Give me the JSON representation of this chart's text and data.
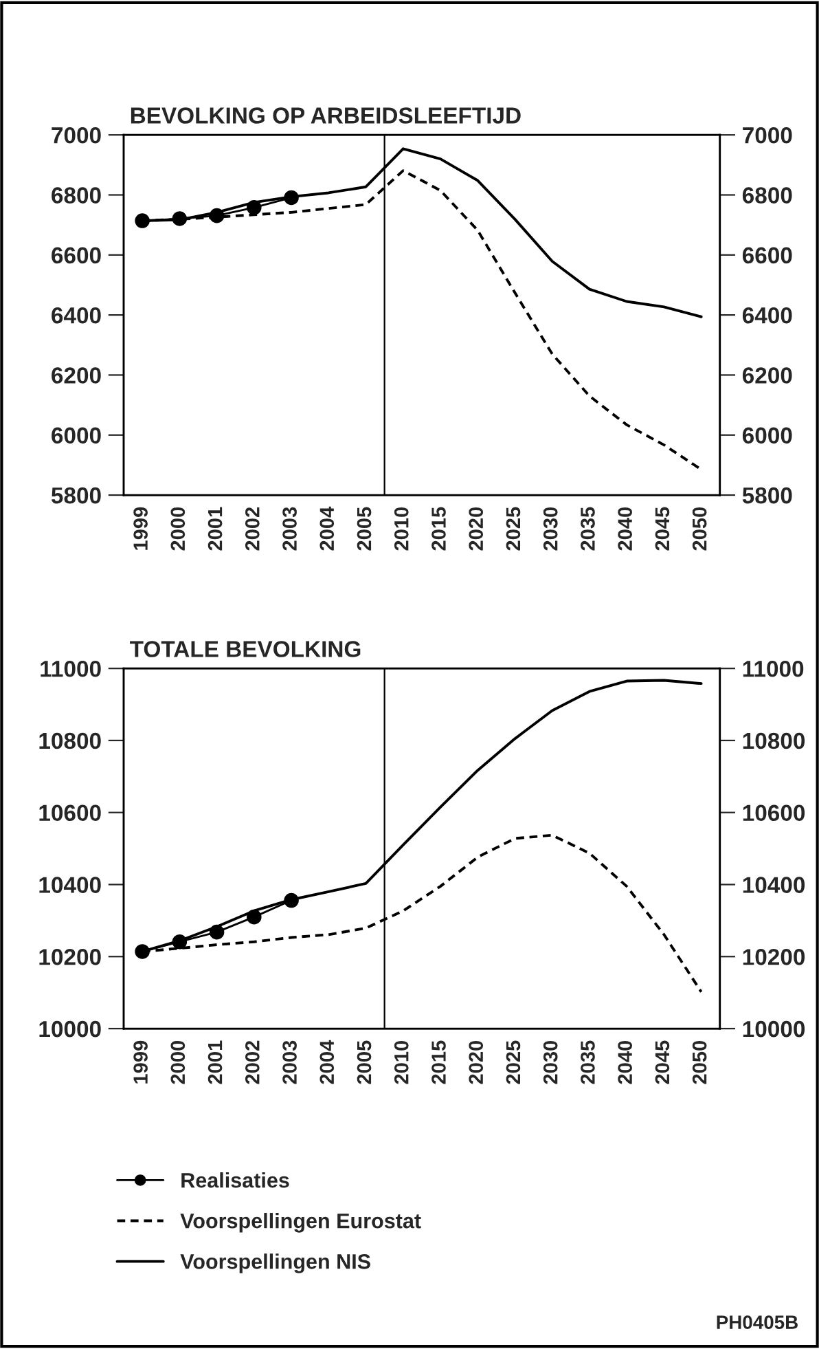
{
  "chart_data": [
    {
      "type": "line",
      "title": "BEVOLKING OP ARBEIDSLEEFTIJD",
      "categories": [
        "1999",
        "2000",
        "2001",
        "2002",
        "2003",
        "2004",
        "2005",
        "2010",
        "2015",
        "2020",
        "2025",
        "2030",
        "2035",
        "2040",
        "2045",
        "2050"
      ],
      "ylim": [
        5800,
        7000
      ],
      "yticks": [
        5800,
        6000,
        6200,
        6400,
        6600,
        6800,
        7000
      ],
      "y2lim": [
        5800,
        7000
      ],
      "y2ticks": [
        5800,
        6000,
        6200,
        6400,
        6600,
        6800,
        7000
      ],
      "grid": false,
      "legend": "bottom",
      "series": [
        {
          "name": "Voorspellingen Eurostat",
          "color": "#000000",
          "line_style": "dashed",
          "marker": "none",
          "values": [
            6714,
            6719,
            6726,
            6734,
            6742,
            6755,
            6768,
            6881,
            6815,
            6682,
            6474,
            6270,
            6130,
            6034,
            5967,
            5885
          ]
        },
        {
          "name": "Voorspellingen NIS",
          "color": "#000000",
          "line_style": "solid",
          "marker": "none",
          "values": [
            6714,
            6717,
            6742,
            6775,
            6794,
            6807,
            6827,
            6954,
            6920,
            6848,
            6719,
            6579,
            6486,
            6445,
            6427,
            6394
          ]
        },
        {
          "name": "Realisaties",
          "color": "#000000",
          "line_style": "solid",
          "marker": "circle",
          "values": [
            6714,
            6721,
            6731,
            6758,
            6791,
            null,
            null,
            null,
            null,
            null,
            null,
            null,
            null,
            null,
            null,
            null
          ]
        }
      ]
    },
    {
      "type": "line",
      "title": "TOTALE BEVOLKING",
      "categories": [
        "1999",
        "2000",
        "2001",
        "2002",
        "2003",
        "2004",
        "2005",
        "2010",
        "2015",
        "2020",
        "2025",
        "2030",
        "2035",
        "2040",
        "2045",
        "2050"
      ],
      "ylim": [
        10000,
        11000
      ],
      "yticks": [
        10000,
        10200,
        10400,
        10600,
        10800,
        11000
      ],
      "y2lim": [
        10000,
        11000
      ],
      "y2ticks": [
        10000,
        10200,
        10400,
        10600,
        10800,
        11000
      ],
      "grid": false,
      "annotations": [
        "PH0405B"
      ],
      "series": [
        {
          "color": "#000000",
          "line_style": "solid",
          "marker": "circle",
          "values": [
            10214,
            10241,
            10268,
            10310,
            10356,
            null,
            null,
            null,
            null,
            null,
            null,
            null,
            null,
            null,
            null,
            null
          ]
        },
        {
          "color": "#000000",
          "line_style": "dashed",
          "marker": "none",
          "values": [
            10214,
            10223,
            10233,
            10241,
            10253,
            10261,
            10279,
            10327,
            10395,
            10476,
            10528,
            10537,
            10487,
            10395,
            10261,
            10102
          ]
        },
        {
          "color": "#000000",
          "line_style": "solid",
          "marker": "none",
          "values": [
            10214,
            10244,
            10283,
            10327,
            10358,
            10380,
            10403,
            10510,
            10615,
            10717,
            10805,
            10883,
            10936,
            10965,
            10967,
            10958
          ]
        }
      ]
    }
  ]
}
